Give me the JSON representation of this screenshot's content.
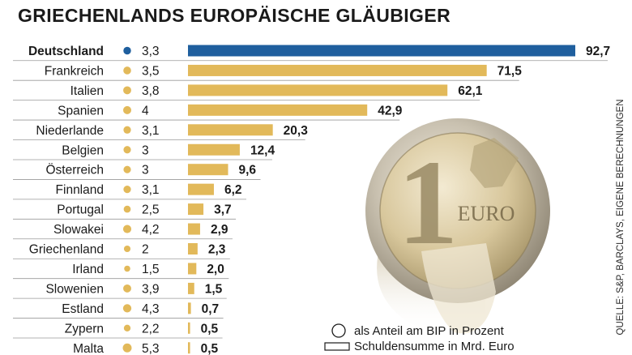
{
  "title": "GRIECHENLANDS EUROPÄISCHE GLÄUBIGER",
  "source": "QUELLE: S&P, BARCLAYS, EIGENE BERECHNUNGEN",
  "legend": {
    "circle_label": "als Anteil am BIP in Prozent",
    "bar_label": "Schuldensumme in Mrd. Euro"
  },
  "colors": {
    "highlight": "#1f5f9e",
    "default": "#e2b95a",
    "text": "#1a1a1a"
  },
  "coin_image": {
    "text": "EURO",
    "numeral": "1"
  },
  "chart_data": {
    "type": "bar",
    "orientation": "horizontal",
    "title": "GRIECHENLANDS EUROPÄISCHE GLÄUBIGER",
    "categories": [
      "Deutschland",
      "Frankreich",
      "Italien",
      "Spanien",
      "Niederlande",
      "Belgien",
      "Österreich",
      "Finnland",
      "Portugal",
      "Slowakei",
      "Griechenland",
      "Irland",
      "Slowenien",
      "Estland",
      "Zypern",
      "Malta"
    ],
    "highlight_category": "Deutschland",
    "series": [
      {
        "name": "Schuldensumme in Mrd. Euro",
        "values": [
          92.7,
          71.5,
          62.1,
          42.9,
          20.3,
          12.4,
          9.6,
          6.2,
          3.7,
          2.9,
          2.3,
          2.0,
          1.5,
          0.7,
          0.5,
          0.5
        ],
        "labels": [
          "92,7",
          "71,5",
          "62,1",
          "42,9",
          "20,3",
          "12,4",
          "9,6",
          "6,2",
          "3,7",
          "2,9",
          "2,3",
          "2,0",
          "1,5",
          "0,7",
          "0,5",
          "0,5"
        ]
      },
      {
        "name": "als Anteil am BIP in Prozent",
        "values": [
          3.3,
          3.5,
          3.8,
          4,
          3.1,
          3,
          3,
          3.1,
          2.5,
          4.2,
          2,
          1.5,
          3.9,
          4.3,
          2.2,
          5.3
        ],
        "labels": [
          "3,3",
          "3,5",
          "3,8",
          "4",
          "3,1",
          "3",
          "3",
          "3,1",
          "2,5",
          "4,2",
          "2",
          "1,5",
          "3,9",
          "4,3",
          "2,2",
          "5,3"
        ]
      }
    ],
    "xlim": [
      0,
      92.7
    ],
    "grid": false,
    "legend_position": "bottom-right"
  }
}
